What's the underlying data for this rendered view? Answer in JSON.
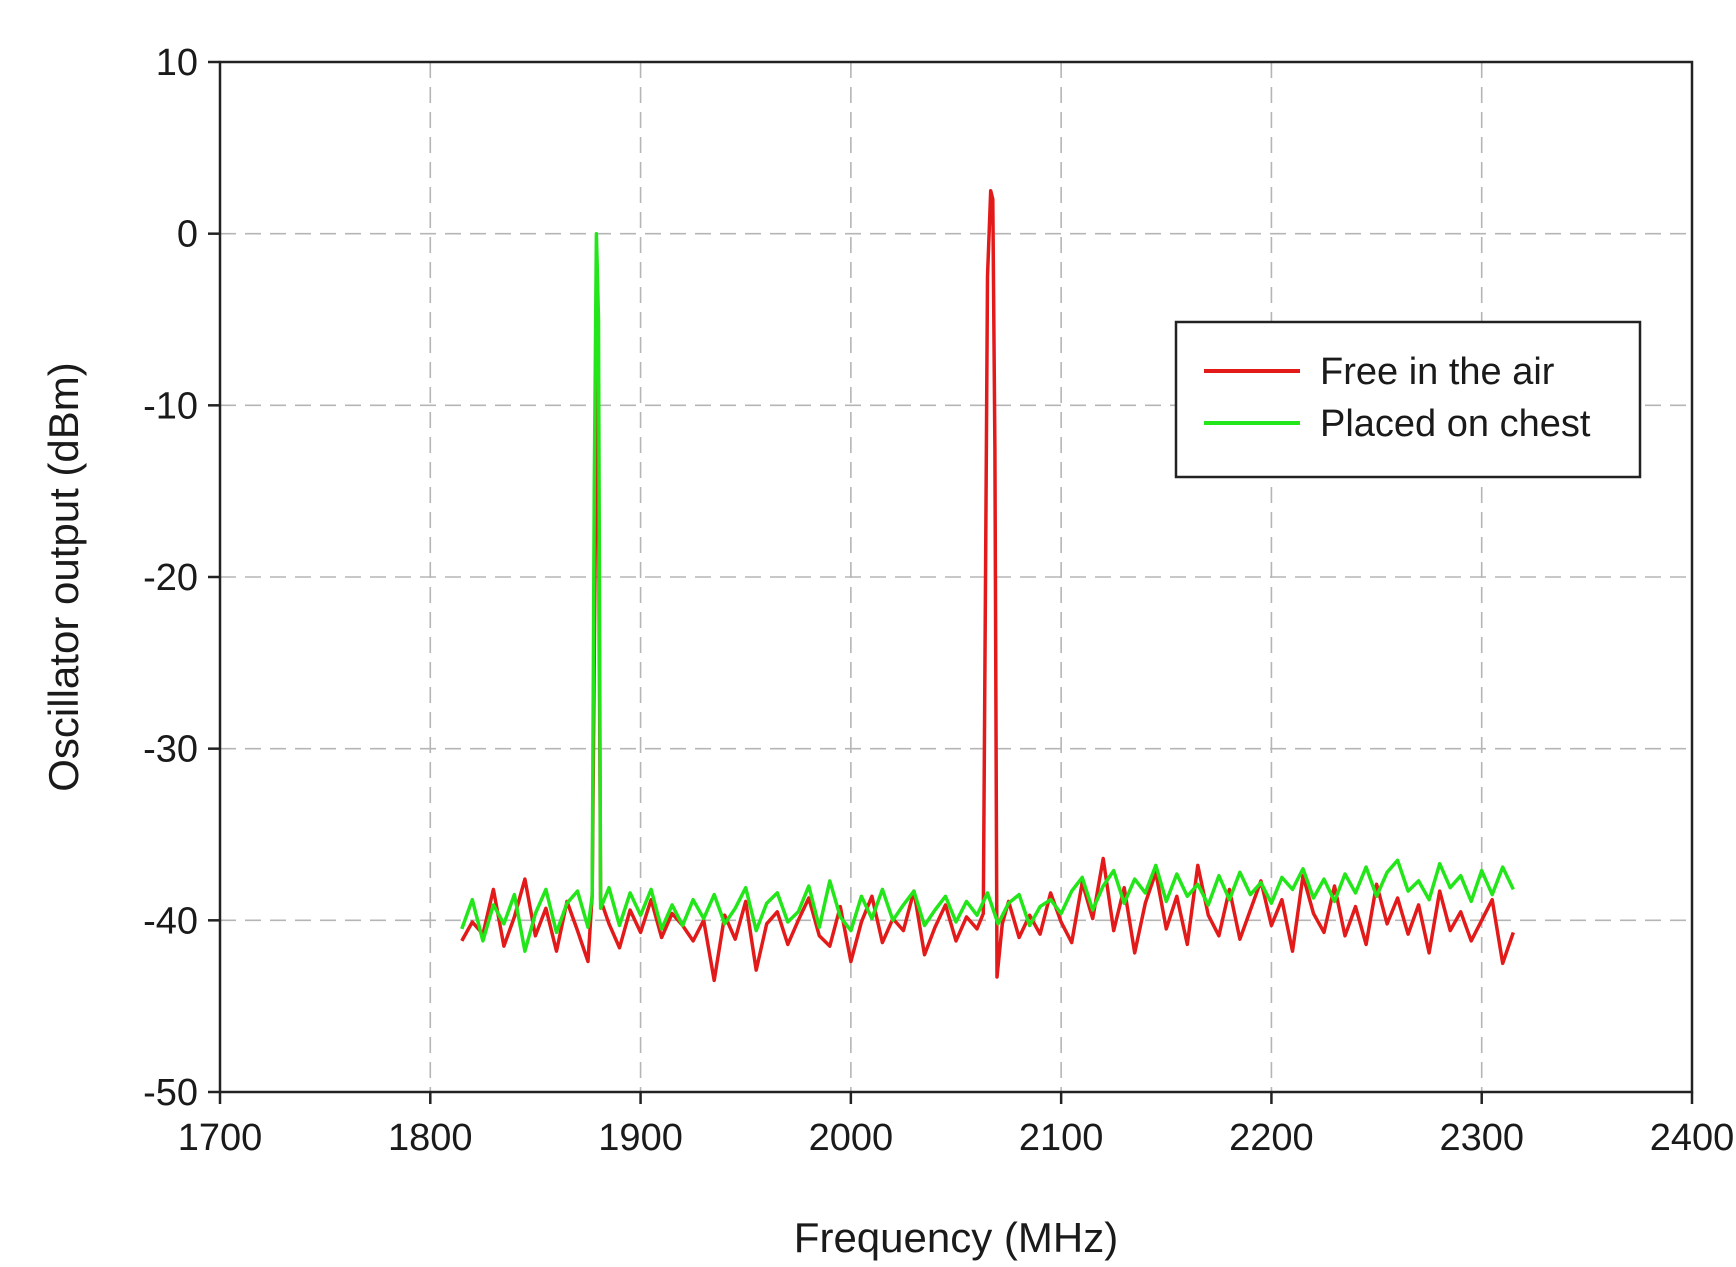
{
  "chart_data": {
    "type": "line",
    "title": "",
    "xlabel": "Frequency (MHz)",
    "ylabel": "Oscillator output (dBm)",
    "xlim": [
      1700,
      2400
    ],
    "ylim": [
      -50,
      10
    ],
    "x_ticks": [
      1700,
      1800,
      1900,
      2000,
      2100,
      2200,
      2300,
      2400
    ],
    "y_ticks": [
      10,
      0,
      -10,
      -20,
      -30,
      -40,
      -50
    ],
    "x_tick_labels": [
      "1700",
      "1800",
      "1900",
      "2000",
      "2100",
      "2200",
      "2300",
      "2400"
    ],
    "y_tick_labels": [
      "10",
      "0",
      "-10",
      "-20",
      "-30",
      "-40",
      "-50"
    ],
    "grid": true,
    "legend_position": "upper-right",
    "series": [
      {
        "name": "Free in the air",
        "color": "#e31a1a",
        "points": [
          [
            1815,
            -41.2
          ],
          [
            1820,
            -40.1
          ],
          [
            1825,
            -40.8
          ],
          [
            1830,
            -38.2
          ],
          [
            1835,
            -41.5
          ],
          [
            1840,
            -39.8
          ],
          [
            1845,
            -37.6
          ],
          [
            1850,
            -40.9
          ],
          [
            1855,
            -39.3
          ],
          [
            1860,
            -41.8
          ],
          [
            1865,
            -38.9
          ],
          [
            1870,
            -40.6
          ],
          [
            1875,
            -42.4
          ],
          [
            1877,
            -38.5
          ],
          [
            1879.5,
            -3.0
          ],
          [
            1881,
            -38.8
          ],
          [
            1885,
            -40.2
          ],
          [
            1890,
            -41.6
          ],
          [
            1895,
            -39.4
          ],
          [
            1900,
            -40.7
          ],
          [
            1905,
            -38.8
          ],
          [
            1910,
            -41.0
          ],
          [
            1915,
            -39.6
          ],
          [
            1920,
            -40.3
          ],
          [
            1925,
            -41.2
          ],
          [
            1930,
            -40.0
          ],
          [
            1935,
            -43.5
          ],
          [
            1940,
            -39.7
          ],
          [
            1945,
            -41.1
          ],
          [
            1950,
            -38.9
          ],
          [
            1955,
            -42.9
          ],
          [
            1960,
            -40.2
          ],
          [
            1965,
            -39.5
          ],
          [
            1970,
            -41.4
          ],
          [
            1975,
            -40.0
          ],
          [
            1980,
            -38.7
          ],
          [
            1985,
            -40.9
          ],
          [
            1990,
            -41.5
          ],
          [
            1995,
            -39.2
          ],
          [
            2000,
            -42.4
          ],
          [
            2005,
            -40.1
          ],
          [
            2010,
            -38.6
          ],
          [
            2015,
            -41.3
          ],
          [
            2020,
            -39.9
          ],
          [
            2025,
            -40.6
          ],
          [
            2030,
            -38.3
          ],
          [
            2035,
            -42.0
          ],
          [
            2040,
            -40.4
          ],
          [
            2045,
            -39.1
          ],
          [
            2050,
            -41.2
          ],
          [
            2055,
            -39.8
          ],
          [
            2060,
            -40.5
          ],
          [
            2063,
            -39.6
          ],
          [
            2065,
            -2.5
          ],
          [
            2066.5,
            2.5
          ],
          [
            2067.5,
            2.0
          ],
          [
            2068.5,
            -12.5
          ],
          [
            2069.5,
            -43.3
          ],
          [
            2072,
            -40.2
          ],
          [
            2075,
            -38.9
          ],
          [
            2080,
            -41.0
          ],
          [
            2085,
            -39.7
          ],
          [
            2090,
            -40.8
          ],
          [
            2095,
            -38.4
          ],
          [
            2100,
            -40.1
          ],
          [
            2105,
            -41.3
          ],
          [
            2110,
            -37.8
          ],
          [
            2115,
            -39.9
          ],
          [
            2120,
            -36.4
          ],
          [
            2125,
            -40.6
          ],
          [
            2130,
            -38.1
          ],
          [
            2135,
            -41.9
          ],
          [
            2140,
            -39.0
          ],
          [
            2145,
            -37.2
          ],
          [
            2150,
            -40.5
          ],
          [
            2155,
            -38.6
          ],
          [
            2160,
            -41.4
          ],
          [
            2165,
            -36.8
          ],
          [
            2170,
            -39.7
          ],
          [
            2175,
            -40.9
          ],
          [
            2180,
            -38.2
          ],
          [
            2185,
            -41.1
          ],
          [
            2190,
            -39.4
          ],
          [
            2195,
            -37.7
          ],
          [
            2200,
            -40.3
          ],
          [
            2205,
            -38.8
          ],
          [
            2210,
            -41.8
          ],
          [
            2215,
            -37.4
          ],
          [
            2220,
            -39.6
          ],
          [
            2225,
            -40.7
          ],
          [
            2230,
            -38.0
          ],
          [
            2235,
            -40.9
          ],
          [
            2240,
            -39.2
          ],
          [
            2245,
            -41.4
          ],
          [
            2250,
            -37.9
          ],
          [
            2255,
            -40.2
          ],
          [
            2260,
            -38.7
          ],
          [
            2265,
            -40.8
          ],
          [
            2270,
            -39.1
          ],
          [
            2275,
            -41.9
          ],
          [
            2280,
            -38.3
          ],
          [
            2285,
            -40.6
          ],
          [
            2290,
            -39.5
          ],
          [
            2295,
            -41.2
          ],
          [
            2300,
            -40.0
          ],
          [
            2305,
            -38.8
          ],
          [
            2310,
            -42.5
          ],
          [
            2315,
            -40.7
          ]
        ]
      },
      {
        "name": "Placed on chest",
        "color": "#22e61a",
        "points": [
          [
            1815,
            -40.5
          ],
          [
            1820,
            -38.8
          ],
          [
            1825,
            -41.2
          ],
          [
            1830,
            -39.1
          ],
          [
            1835,
            -40.2
          ],
          [
            1840,
            -38.5
          ],
          [
            1845,
            -41.8
          ],
          [
            1850,
            -39.6
          ],
          [
            1855,
            -38.2
          ],
          [
            1860,
            -40.7
          ],
          [
            1865,
            -39.0
          ],
          [
            1870,
            -38.3
          ],
          [
            1875,
            -40.4
          ],
          [
            1877,
            -38.6
          ],
          [
            1878,
            -14.5
          ],
          [
            1879,
            0.0
          ],
          [
            1880,
            -5.0
          ],
          [
            1881,
            -39.3
          ],
          [
            1885,
            -38.1
          ],
          [
            1890,
            -40.3
          ],
          [
            1895,
            -38.4
          ],
          [
            1900,
            -39.7
          ],
          [
            1905,
            -38.2
          ],
          [
            1910,
            -40.5
          ],
          [
            1915,
            -39.1
          ],
          [
            1920,
            -40.3
          ],
          [
            1925,
            -38.8
          ],
          [
            1930,
            -39.9
          ],
          [
            1935,
            -38.5
          ],
          [
            1940,
            -40.2
          ],
          [
            1945,
            -39.3
          ],
          [
            1950,
            -38.1
          ],
          [
            1955,
            -40.6
          ],
          [
            1960,
            -39.0
          ],
          [
            1965,
            -38.4
          ],
          [
            1970,
            -40.1
          ],
          [
            1975,
            -39.5
          ],
          [
            1980,
            -38.0
          ],
          [
            1985,
            -40.4
          ],
          [
            1990,
            -37.7
          ],
          [
            1995,
            -39.8
          ],
          [
            2000,
            -40.6
          ],
          [
            2005,
            -38.6
          ],
          [
            2010,
            -39.9
          ],
          [
            2015,
            -38.2
          ],
          [
            2020,
            -40.0
          ],
          [
            2025,
            -39.1
          ],
          [
            2030,
            -38.3
          ],
          [
            2035,
            -40.3
          ],
          [
            2040,
            -39.4
          ],
          [
            2045,
            -38.6
          ],
          [
            2050,
            -40.1
          ],
          [
            2055,
            -38.9
          ],
          [
            2060,
            -39.7
          ],
          [
            2065,
            -38.4
          ],
          [
            2070,
            -40.2
          ],
          [
            2075,
            -39.0
          ],
          [
            2080,
            -38.5
          ],
          [
            2085,
            -40.3
          ],
          [
            2090,
            -39.2
          ],
          [
            2095,
            -38.8
          ],
          [
            2100,
            -39.6
          ],
          [
            2105,
            -38.3
          ],
          [
            2110,
            -37.5
          ],
          [
            2115,
            -39.4
          ],
          [
            2120,
            -38.0
          ],
          [
            2125,
            -37.1
          ],
          [
            2130,
            -39.0
          ],
          [
            2135,
            -37.6
          ],
          [
            2140,
            -38.4
          ],
          [
            2145,
            -36.8
          ],
          [
            2150,
            -38.9
          ],
          [
            2155,
            -37.3
          ],
          [
            2160,
            -38.6
          ],
          [
            2165,
            -37.9
          ],
          [
            2170,
            -39.1
          ],
          [
            2175,
            -37.4
          ],
          [
            2180,
            -38.8
          ],
          [
            2185,
            -37.2
          ],
          [
            2190,
            -38.5
          ],
          [
            2195,
            -37.8
          ],
          [
            2200,
            -39.0
          ],
          [
            2205,
            -37.5
          ],
          [
            2210,
            -38.2
          ],
          [
            2215,
            -37.0
          ],
          [
            2220,
            -38.7
          ],
          [
            2225,
            -37.6
          ],
          [
            2230,
            -38.9
          ],
          [
            2235,
            -37.3
          ],
          [
            2240,
            -38.4
          ],
          [
            2245,
            -36.9
          ],
          [
            2250,
            -38.6
          ],
          [
            2255,
            -37.2
          ],
          [
            2260,
            -36.5
          ],
          [
            2265,
            -38.3
          ],
          [
            2270,
            -37.7
          ],
          [
            2275,
            -38.8
          ],
          [
            2280,
            -36.7
          ],
          [
            2285,
            -38.1
          ],
          [
            2290,
            -37.4
          ],
          [
            2295,
            -38.9
          ],
          [
            2300,
            -37.1
          ],
          [
            2305,
            -38.5
          ],
          [
            2310,
            -36.9
          ],
          [
            2315,
            -38.2
          ]
        ]
      }
    ]
  }
}
